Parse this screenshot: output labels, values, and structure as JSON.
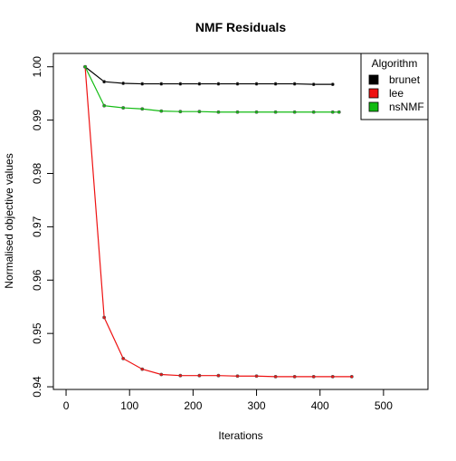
{
  "chart_data": {
    "type": "line",
    "title": "NMF Residuals",
    "xlabel": "Iterations",
    "ylabel": "Normalised objective values",
    "xlim": [
      -20,
      570
    ],
    "ylim": [
      0.9395,
      1.0025
    ],
    "xticks": [
      0,
      100,
      200,
      300,
      400,
      500
    ],
    "xtick_labels": [
      "0",
      "100",
      "200",
      "300",
      "400",
      "500"
    ],
    "yticks": [
      0.94,
      0.95,
      0.96,
      0.97,
      0.98,
      0.99,
      1.0
    ],
    "ytick_labels": [
      "0.94",
      "0.95",
      "0.96",
      "0.97",
      "0.98",
      "0.99",
      "1.00"
    ],
    "grid": false,
    "legend": {
      "title": "Algorithm",
      "position": "top-right"
    },
    "series": [
      {
        "name": "brunet",
        "color": "#000000",
        "x": [
          30,
          60,
          90,
          120,
          150,
          180,
          210,
          240,
          270,
          300,
          330,
          360,
          390,
          420
        ],
        "y": [
          1.0,
          0.9972,
          0.9969,
          0.9968,
          0.9968,
          0.9968,
          0.9968,
          0.9968,
          0.9968,
          0.9968,
          0.9968,
          0.9968,
          0.9967,
          0.9967
        ]
      },
      {
        "name": "lee",
        "color": "#ee1111",
        "x": [
          30,
          60,
          90,
          120,
          150,
          180,
          210,
          240,
          270,
          300,
          330,
          360,
          390,
          420,
          450
        ],
        "y": [
          1.0,
          0.953,
          0.9453,
          0.9433,
          0.9423,
          0.9421,
          0.9421,
          0.9421,
          0.942,
          0.942,
          0.9419,
          0.9419,
          0.9419,
          0.9419,
          0.9419
        ]
      },
      {
        "name": "nsNMF",
        "color": "#11bb11",
        "x": [
          30,
          60,
          90,
          120,
          150,
          180,
          210,
          240,
          270,
          300,
          330,
          360,
          390,
          420,
          430
        ],
        "y": [
          1.0,
          0.9927,
          0.9923,
          0.9921,
          0.9917,
          0.9916,
          0.9916,
          0.9915,
          0.9915,
          0.9915,
          0.9915,
          0.9915,
          0.9915,
          0.9915,
          0.9915
        ]
      }
    ]
  }
}
